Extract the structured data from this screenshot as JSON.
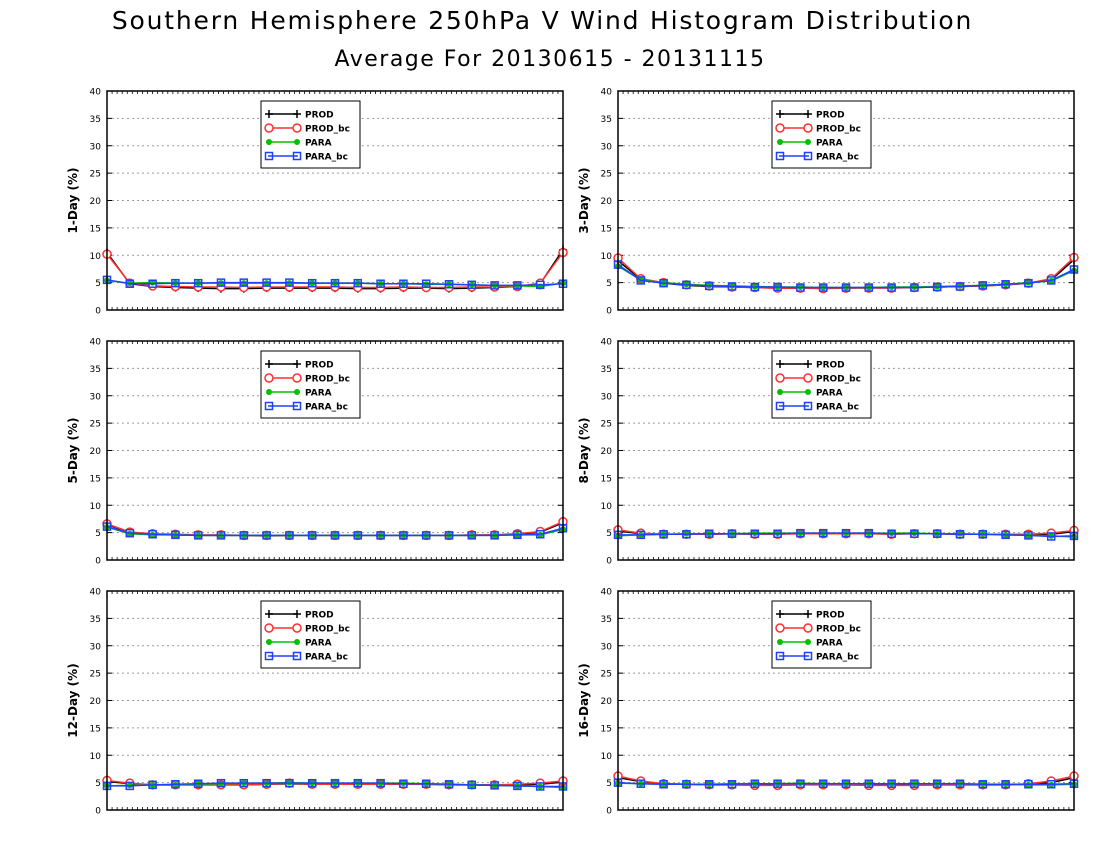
{
  "title": "Southern Hemisphere 250hPa V Wind Histogram Distribution",
  "subtitle": "Average For 20130615 - 20131115",
  "colors": {
    "PROD": "#000000",
    "PROD_bc": "#ff3030",
    "PARA": "#00c000",
    "PARA_bc": "#2040ff"
  },
  "chart_data": [
    {
      "type": "line",
      "ylabel": "1-Day (%)",
      "ylim": [
        0,
        40
      ],
      "yticks": [
        0,
        5,
        10,
        15,
        20,
        25,
        30,
        35,
        40
      ],
      "grid": true,
      "legend_position": "upper-center",
      "x": [
        1,
        2,
        3,
        4,
        5,
        6,
        7,
        8,
        9,
        10,
        11,
        12,
        13,
        14,
        15,
        16,
        17,
        18,
        19,
        20,
        21
      ],
      "series": [
        {
          "name": "PROD",
          "marker": "plus",
          "values": [
            10.5,
            4.8,
            4.3,
            4.1,
            4.0,
            3.9,
            3.9,
            4.0,
            4.0,
            4.0,
            4.0,
            3.9,
            3.9,
            4.0,
            4.0,
            3.9,
            4.0,
            4.1,
            4.3,
            4.8,
            11.0
          ]
        },
        {
          "name": "PROD_bc",
          "marker": "circle",
          "values": [
            10.2,
            4.9,
            4.4,
            4.3,
            4.2,
            4.2,
            4.1,
            4.2,
            4.2,
            4.2,
            4.2,
            4.1,
            4.1,
            4.2,
            4.1,
            4.1,
            4.2,
            4.2,
            4.3,
            4.9,
            10.5
          ]
        },
        {
          "name": "PARA",
          "marker": "dot",
          "values": [
            5.4,
            4.9,
            5.0,
            4.9,
            4.9,
            4.9,
            4.9,
            4.9,
            4.9,
            4.9,
            4.9,
            4.9,
            4.8,
            4.8,
            4.7,
            4.7,
            4.6,
            4.5,
            4.4,
            4.3,
            4.9
          ]
        },
        {
          "name": "PARA_bc",
          "marker": "square",
          "values": [
            5.5,
            4.8,
            4.8,
            4.9,
            4.9,
            5.0,
            5.0,
            5.0,
            5.0,
            4.9,
            4.9,
            4.9,
            4.8,
            4.8,
            4.8,
            4.7,
            4.6,
            4.5,
            4.5,
            4.6,
            4.8
          ]
        }
      ]
    },
    {
      "type": "line",
      "ylabel": "3-Day (%)",
      "ylim": [
        0,
        40
      ],
      "yticks": [
        0,
        5,
        10,
        15,
        20,
        25,
        30,
        35,
        40
      ],
      "grid": true,
      "legend_position": "upper-center",
      "x": [
        1,
        2,
        3,
        4,
        5,
        6,
        7,
        8,
        9,
        10,
        11,
        12,
        13,
        14,
        15,
        16,
        17,
        18,
        19,
        20,
        21
      ],
      "series": [
        {
          "name": "PROD",
          "marker": "plus",
          "values": [
            9.0,
            5.6,
            4.9,
            4.5,
            4.3,
            4.2,
            4.1,
            4.0,
            4.0,
            4.0,
            4.0,
            4.1,
            4.1,
            4.1,
            4.2,
            4.3,
            4.4,
            4.6,
            4.9,
            5.5,
            9.2
          ]
        },
        {
          "name": "PROD_bc",
          "marker": "circle",
          "values": [
            9.5,
            5.7,
            5.0,
            4.6,
            4.4,
            4.2,
            4.1,
            4.0,
            4.0,
            3.9,
            4.0,
            4.0,
            4.0,
            4.1,
            4.2,
            4.3,
            4.4,
            4.6,
            4.9,
            5.7,
            9.6
          ]
        },
        {
          "name": "PARA",
          "marker": "dot",
          "values": [
            8.0,
            5.5,
            5.0,
            4.7,
            4.5,
            4.4,
            4.3,
            4.2,
            4.2,
            4.1,
            4.1,
            4.1,
            4.2,
            4.2,
            4.3,
            4.4,
            4.5,
            4.7,
            5.0,
            5.3,
            7.2
          ]
        },
        {
          "name": "PARA_bc",
          "marker": "square",
          "values": [
            8.3,
            5.4,
            4.9,
            4.6,
            4.4,
            4.3,
            4.2,
            4.2,
            4.1,
            4.1,
            4.1,
            4.1,
            4.1,
            4.1,
            4.2,
            4.3,
            4.5,
            4.7,
            4.9,
            5.4,
            7.4
          ]
        }
      ]
    },
    {
      "type": "line",
      "ylabel": "5-Day (%)",
      "ylim": [
        0,
        40
      ],
      "yticks": [
        0,
        5,
        10,
        15,
        20,
        25,
        30,
        35,
        40
      ],
      "grid": true,
      "legend_position": "upper-center",
      "x": [
        1,
        2,
        3,
        4,
        5,
        6,
        7,
        8,
        9,
        10,
        11,
        12,
        13,
        14,
        15,
        16,
        17,
        18,
        19,
        20,
        21
      ],
      "series": [
        {
          "name": "PROD",
          "marker": "plus",
          "values": [
            6.5,
            5.0,
            4.7,
            4.6,
            4.5,
            4.5,
            4.5,
            4.4,
            4.5,
            4.5,
            4.5,
            4.5,
            4.5,
            4.5,
            4.5,
            4.5,
            4.5,
            4.6,
            4.7,
            5.1,
            6.8
          ]
        },
        {
          "name": "PROD_bc",
          "marker": "circle",
          "values": [
            6.6,
            5.1,
            4.8,
            4.7,
            4.6,
            4.6,
            4.5,
            4.5,
            4.5,
            4.5,
            4.5,
            4.5,
            4.5,
            4.5,
            4.5,
            4.5,
            4.6,
            4.6,
            4.8,
            5.2,
            7.0
          ]
        },
        {
          "name": "PARA",
          "marker": "dot",
          "values": [
            6.0,
            4.8,
            4.6,
            4.6,
            4.5,
            4.5,
            4.5,
            4.5,
            4.5,
            4.5,
            4.5,
            4.5,
            4.5,
            4.5,
            4.5,
            4.5,
            4.5,
            4.5,
            4.6,
            4.6,
            5.6
          ]
        },
        {
          "name": "PARA_bc",
          "marker": "square",
          "values": [
            6.1,
            4.9,
            4.7,
            4.6,
            4.5,
            4.5,
            4.5,
            4.5,
            4.5,
            4.5,
            4.5,
            4.5,
            4.5,
            4.5,
            4.5,
            4.5,
            4.5,
            4.5,
            4.6,
            4.7,
            5.8
          ]
        }
      ]
    },
    {
      "type": "line",
      "ylabel": "8-Day (%)",
      "ylim": [
        0,
        40
      ],
      "yticks": [
        0,
        5,
        10,
        15,
        20,
        25,
        30,
        35,
        40
      ],
      "grid": true,
      "legend_position": "upper-center",
      "x": [
        1,
        2,
        3,
        4,
        5,
        6,
        7,
        8,
        9,
        10,
        11,
        12,
        13,
        14,
        15,
        16,
        17,
        18,
        19,
        20,
        21
      ],
      "series": [
        {
          "name": "PROD",
          "marker": "plus",
          "values": [
            5.3,
            4.8,
            4.7,
            4.7,
            4.7,
            4.8,
            4.7,
            4.8,
            4.8,
            4.9,
            4.8,
            4.9,
            4.8,
            4.8,
            4.8,
            4.7,
            4.7,
            4.7,
            4.6,
            4.7,
            5.2
          ]
        },
        {
          "name": "PROD_bc",
          "marker": "circle",
          "values": [
            5.5,
            4.9,
            4.7,
            4.7,
            4.7,
            4.8,
            4.7,
            4.7,
            4.8,
            4.8,
            4.8,
            4.8,
            4.7,
            4.8,
            4.8,
            4.7,
            4.7,
            4.7,
            4.7,
            4.9,
            5.4
          ]
        },
        {
          "name": "PARA",
          "marker": "dot",
          "values": [
            4.4,
            4.6,
            4.7,
            4.8,
            4.8,
            4.8,
            4.9,
            4.9,
            4.9,
            4.9,
            4.9,
            4.9,
            4.9,
            4.9,
            4.8,
            4.8,
            4.7,
            4.6,
            4.5,
            4.4,
            4.2
          ]
        },
        {
          "name": "PARA_bc",
          "marker": "square",
          "values": [
            4.6,
            4.6,
            4.7,
            4.7,
            4.8,
            4.8,
            4.8,
            4.8,
            4.9,
            4.9,
            4.9,
            4.9,
            4.8,
            4.8,
            4.8,
            4.7,
            4.7,
            4.6,
            4.5,
            4.3,
            4.4
          ]
        }
      ]
    },
    {
      "type": "line",
      "ylabel": "12-Day (%)",
      "ylim": [
        0,
        40
      ],
      "yticks": [
        0,
        5,
        10,
        15,
        20,
        25,
        30,
        35,
        40
      ],
      "grid": true,
      "legend_position": "upper-center",
      "x": [
        1,
        2,
        3,
        4,
        5,
        6,
        7,
        8,
        9,
        10,
        11,
        12,
        13,
        14,
        15,
        16,
        17,
        18,
        19,
        20,
        21
      ],
      "series": [
        {
          "name": "PROD",
          "marker": "plus",
          "values": [
            5.2,
            4.8,
            4.6,
            4.6,
            4.6,
            4.6,
            4.6,
            4.7,
            4.8,
            4.7,
            4.7,
            4.7,
            4.7,
            4.7,
            4.7,
            4.6,
            4.6,
            4.6,
            4.6,
            4.7,
            5.1
          ]
        },
        {
          "name": "PROD_bc",
          "marker": "circle",
          "values": [
            5.4,
            4.9,
            4.6,
            4.6,
            4.6,
            4.6,
            4.6,
            4.7,
            4.9,
            4.7,
            4.7,
            4.7,
            4.7,
            4.7,
            4.7,
            4.6,
            4.6,
            4.6,
            4.7,
            4.9,
            5.3
          ]
        },
        {
          "name": "PARA",
          "marker": "dot",
          "values": [
            4.4,
            4.5,
            4.6,
            4.6,
            4.7,
            4.8,
            4.9,
            4.9,
            5.0,
            4.9,
            4.9,
            4.9,
            4.9,
            4.9,
            4.8,
            4.7,
            4.6,
            4.5,
            4.4,
            4.3,
            4.1
          ]
        },
        {
          "name": "PARA_bc",
          "marker": "square",
          "values": [
            4.4,
            4.4,
            4.6,
            4.7,
            4.8,
            4.9,
            4.9,
            4.9,
            4.9,
            4.9,
            4.9,
            4.9,
            4.9,
            4.8,
            4.8,
            4.7,
            4.6,
            4.5,
            4.4,
            4.3,
            4.3
          ]
        }
      ]
    },
    {
      "type": "line",
      "ylabel": "16-Day (%)",
      "ylim": [
        0,
        40
      ],
      "yticks": [
        0,
        5,
        10,
        15,
        20,
        25,
        30,
        35,
        40
      ],
      "grid": true,
      "legend_position": "upper-center",
      "x": [
        1,
        2,
        3,
        4,
        5,
        6,
        7,
        8,
        9,
        10,
        11,
        12,
        13,
        14,
        15,
        16,
        17,
        18,
        19,
        20,
        21
      ],
      "series": [
        {
          "name": "PROD",
          "marker": "plus",
          "values": [
            5.9,
            5.2,
            4.8,
            4.7,
            4.6,
            4.6,
            4.6,
            4.6,
            4.6,
            4.7,
            4.6,
            4.6,
            4.6,
            4.6,
            4.6,
            4.6,
            4.6,
            4.6,
            4.7,
            5.0,
            5.9
          ]
        },
        {
          "name": "PROD_bc",
          "marker": "circle",
          "values": [
            6.2,
            5.3,
            4.8,
            4.7,
            4.6,
            4.6,
            4.5,
            4.5,
            4.6,
            4.6,
            4.6,
            4.5,
            4.5,
            4.5,
            4.6,
            4.6,
            4.6,
            4.6,
            4.8,
            5.3,
            6.2
          ]
        },
        {
          "name": "PARA",
          "marker": "dot",
          "values": [
            4.9,
            4.8,
            4.7,
            4.7,
            4.7,
            4.8,
            4.8,
            4.8,
            4.9,
            4.8,
            4.8,
            4.8,
            4.8,
            4.8,
            4.8,
            4.8,
            4.7,
            4.7,
            4.6,
            4.6,
            4.7
          ]
        },
        {
          "name": "PARA_bc",
          "marker": "square",
          "values": [
            5.0,
            4.8,
            4.7,
            4.7,
            4.7,
            4.7,
            4.8,
            4.8,
            4.8,
            4.8,
            4.8,
            4.8,
            4.8,
            4.8,
            4.8,
            4.8,
            4.7,
            4.7,
            4.7,
            4.7,
            4.8
          ]
        }
      ]
    }
  ]
}
